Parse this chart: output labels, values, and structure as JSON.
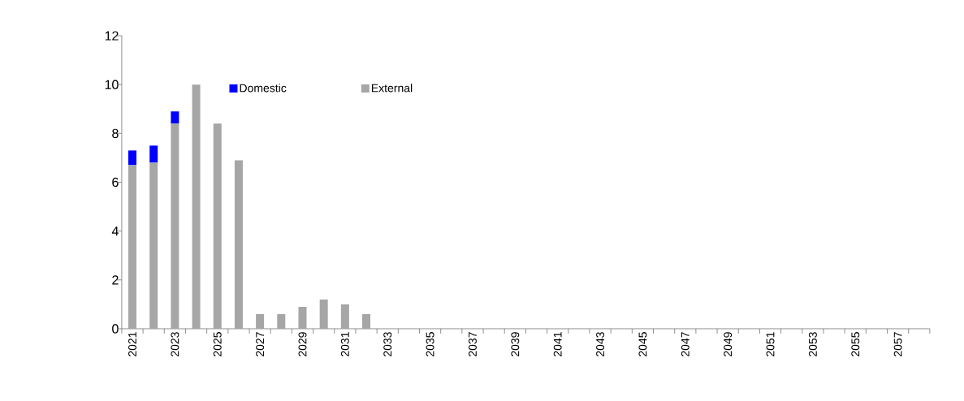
{
  "chart_data": {
    "type": "bar",
    "stacked": true,
    "legend": "top left",
    "grid": false,
    "categories": [
      "2021",
      null,
      "2023",
      null,
      "2025",
      null,
      "2027",
      null,
      "2029",
      null,
      "2031",
      null,
      "2033",
      null,
      "2035",
      null,
      "2037",
      null,
      "2039",
      null,
      "2041",
      null,
      "2043",
      null,
      "2045",
      null,
      "2047",
      null,
      "2049",
      null,
      "2051",
      null,
      "2053",
      null,
      "2055",
      null,
      "2057",
      null
    ],
    "series": [
      {
        "name": "External",
        "color": "#a6a6a6",
        "values": [
          6.7,
          6.8,
          8.4,
          10.0,
          8.4,
          6.9,
          0.6,
          0.6,
          0.9,
          1.2,
          1.0,
          0.6,
          0,
          0,
          0,
          0,
          0,
          0,
          0,
          0,
          0,
          0,
          0,
          0,
          0,
          0,
          0,
          0,
          0,
          0,
          0,
          0,
          0,
          0,
          0,
          0,
          0,
          0
        ]
      },
      {
        "name": "Domestic",
        "color": "#0000ff",
        "values": [
          0.6,
          0.7,
          0.5,
          0,
          0,
          0,
          0,
          0,
          0,
          0,
          0,
          0,
          0,
          0,
          0,
          0,
          0,
          0,
          0,
          0,
          0,
          0,
          0,
          0,
          0,
          0,
          0,
          0,
          0,
          0,
          0,
          0,
          0,
          0,
          0,
          0,
          0,
          0
        ]
      }
    ],
    "ylim": [
      0,
      12
    ],
    "yticks": [
      0,
      2,
      4,
      6,
      8,
      10,
      12
    ]
  }
}
